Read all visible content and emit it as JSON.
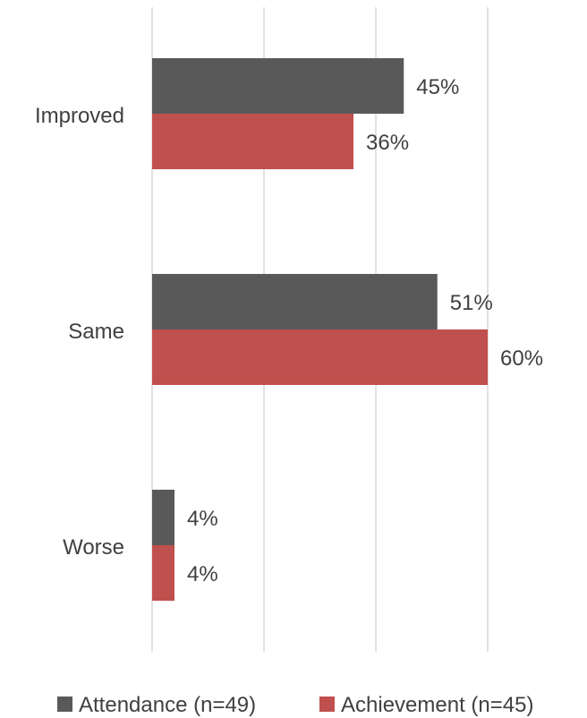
{
  "chart_data": {
    "type": "bar",
    "orientation": "horizontal",
    "categories": [
      "Improved",
      "Same",
      "Worse"
    ],
    "series": [
      {
        "name": "Attendance (n=49)",
        "values": [
          45,
          51,
          4
        ],
        "labels": [
          "45%",
          "51%",
          "4%"
        ],
        "color": "#595959"
      },
      {
        "name": "Achievement (n=45)",
        "values": [
          36,
          60,
          4
        ],
        "labels": [
          "36%",
          "60%",
          "4%"
        ],
        "color": "#c0504d"
      }
    ],
    "xlim": [
      0,
      80
    ],
    "grid": true,
    "gridline_color": "#d9d9d9",
    "text_color": "#404040",
    "legend_position": "bottom"
  }
}
